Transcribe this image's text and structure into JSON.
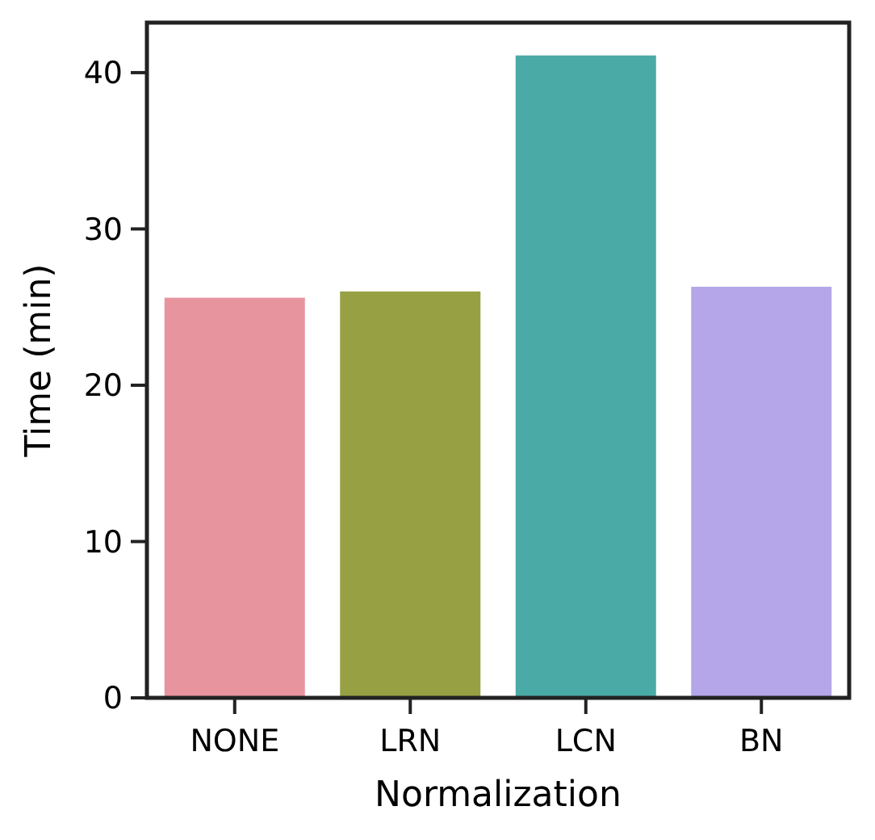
{
  "chart_data": {
    "type": "bar",
    "xlabel": "Normalization",
    "ylabel": "Time (min)",
    "categories": [
      "NONE",
      "LRN",
      "LCN",
      "BN"
    ],
    "values": [
      25.6,
      26.0,
      41.1,
      26.3
    ],
    "colors": [
      "#e8949f",
      "#97a043",
      "#4aaaa5",
      "#b4a6e8"
    ],
    "ylim": [
      0,
      43.2
    ],
    "yticks": [
      0,
      10,
      20,
      30,
      40
    ],
    "grid": false
  }
}
